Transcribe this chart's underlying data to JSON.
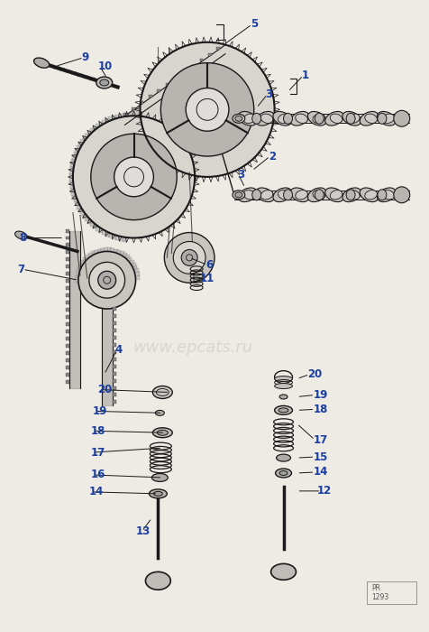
{
  "bg_color": "#eeeae4",
  "label_color": "#1a3fa0",
  "line_color": "#1a1a1a",
  "fill_light": "#c8c4be",
  "fill_mid": "#a8a4a0",
  "fill_dark": "#888480",
  "watermark": "www.epcats.ru",
  "part_number": "PR\n1293",
  "figsize": [
    4.76,
    7.0
  ],
  "dpi": 100,
  "labels_upper": [
    [
      "9",
      90,
      62,
      "left"
    ],
    [
      "10",
      108,
      72,
      "left"
    ],
    [
      "5",
      278,
      25,
      "left"
    ],
    [
      "1",
      332,
      85,
      "left"
    ],
    [
      "3",
      320,
      105,
      "left"
    ],
    [
      "2",
      298,
      175,
      "left"
    ],
    [
      "3",
      268,
      195,
      "left"
    ],
    [
      "8",
      22,
      265,
      "left"
    ],
    [
      "7",
      18,
      300,
      "left"
    ],
    [
      "4",
      130,
      390,
      "left"
    ],
    [
      "6",
      230,
      295,
      "left"
    ],
    [
      "11",
      225,
      310,
      "left"
    ]
  ],
  "labels_lower": [
    [
      "20",
      110,
      435,
      "left"
    ],
    [
      "19",
      100,
      460,
      "left"
    ],
    [
      "18",
      100,
      482,
      "left"
    ],
    [
      "17",
      100,
      505,
      "left"
    ],
    [
      "16",
      100,
      528,
      "left"
    ],
    [
      "14",
      98,
      548,
      "left"
    ],
    [
      "13",
      155,
      590,
      "left"
    ],
    [
      "20",
      340,
      430,
      "left"
    ],
    [
      "19",
      348,
      452,
      "left"
    ],
    [
      "18",
      348,
      468,
      "left"
    ],
    [
      "17",
      348,
      490,
      "left"
    ],
    [
      "15",
      348,
      510,
      "left"
    ],
    [
      "14",
      348,
      528,
      "left"
    ],
    [
      "12",
      358,
      548,
      "left"
    ]
  ]
}
